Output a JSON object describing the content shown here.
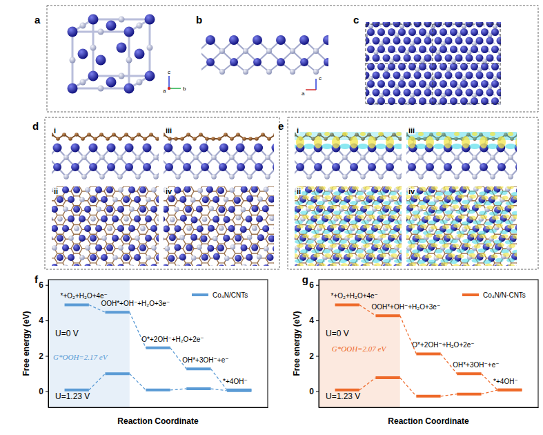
{
  "panels": [
    {
      "label": "a",
      "axes": [
        "c",
        "b",
        "a"
      ]
    },
    {
      "label": "b",
      "axes": [
        "c",
        "a"
      ]
    },
    {
      "label": "c"
    },
    {
      "label": "d",
      "subpanels": [
        "i",
        "ii",
        "iii",
        "iv"
      ]
    },
    {
      "label": "e",
      "subpanels": [
        "i",
        "ii",
        "iii",
        "iv"
      ]
    }
  ],
  "chart_data": [
    {
      "type": "energy_levels",
      "title": "f",
      "y_label": "Free energy (eV)",
      "x_label": "Reaction Coordinate",
      "x": [
        1,
        2,
        3,
        4,
        5
      ],
      "xlim": [
        0.3,
        5.7
      ],
      "xticks": [],
      "ylim": [
        -0.9,
        6.3
      ],
      "yticks": [
        0,
        2,
        4,
        6
      ],
      "tick_labels": "y",
      "legend": "upper right",
      "line_style": "dashed",
      "step_labels": [
        "*+O₂+H₂O+4e⁻",
        "OOH*+OH⁻+H₂O+3e⁻",
        "O*+2OH⁻+H₂O+2e⁻",
        "OH*+3OH⁻+e⁻",
        "*+4OH⁻"
      ],
      "series": [
        {
          "name": "Co₄N/CNTs",
          "color": "#5b9bd5",
          "values": [
            4.88,
            4.46,
            2.46,
            1.27,
            0.08
          ]
        },
        {
          "color": "#5b9bd5",
          "values": [
            0.08,
            1.0,
            0.08,
            0.15,
            0.04
          ]
        }
      ],
      "annotations": [
        {
          "text": "U=0 V",
          "x": 0.47,
          "y": 3.1
        },
        {
          "text": "G*OOH=2.17 eV",
          "x": 0.42,
          "y": 1.8,
          "color": "#5b9bd5"
        },
        {
          "text": "U=1.23 V",
          "x": 0.47,
          "y": -0.42
        }
      ]
    },
    {
      "type": "energy_levels",
      "title": "g",
      "y_label": "Free energy (eV)",
      "x_label": "Reaction Coordinate",
      "x": [
        1,
        2,
        3,
        4,
        5
      ],
      "xlim": [
        0.3,
        5.7
      ],
      "xticks": [],
      "ylim": [
        -0.9,
        6.3
      ],
      "yticks": [
        0,
        2,
        4,
        6
      ],
      "tick_labels": "y",
      "legend": "upper right",
      "line_style": "dashed",
      "step_labels": [
        "*+O₂+H₂O+4e⁻",
        "OOH*+OH⁻+H₂O+3e⁻",
        "O*+2OH⁻+H₂O+2e⁻",
        "OH*+3OH⁻+e⁻",
        "*+4OH⁻"
      ],
      "series": [
        {
          "name": "Co₄N/N-CNTs",
          "color": "#ee6a2a",
          "values": [
            4.88,
            4.27,
            2.12,
            1.0,
            0.08
          ]
        },
        {
          "color": "#ee6a2a",
          "values": [
            0.08,
            0.77,
            -0.27,
            -0.15,
            0.08
          ]
        }
      ],
      "annotations": [
        {
          "text": "U=0 V",
          "x": 0.47,
          "y": 3.1
        },
        {
          "text": "G*OOH=2.07 eV",
          "x": 0.62,
          "y": 2.27,
          "color": "#ee6a2a"
        },
        {
          "text": "U=1.23 V",
          "x": 0.47,
          "y": -0.42
        }
      ]
    }
  ]
}
